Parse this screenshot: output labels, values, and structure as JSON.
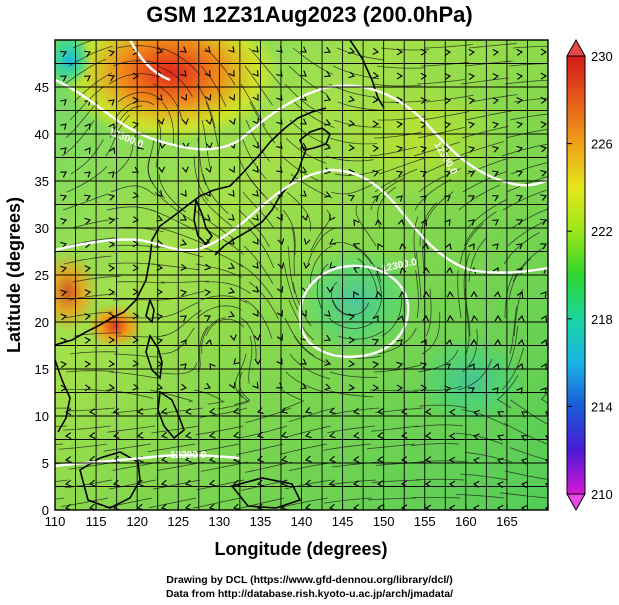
{
  "title": "GSM 12Z31Aug2023 (200.0hPa)",
  "credits": {
    "line1": "Drawing by DCL (https://www.gfd-dennou.org/library/dcl/)",
    "line2": "Data from http://database.rish.kyoto-u.ac.jp/arch/jmadata/"
  },
  "map": {
    "xlabel": "Longitude (degrees)",
    "ylabel": "Latitude  (degrees)",
    "x_ticks": [
      "110",
      "115",
      "120",
      "125",
      "130",
      "135",
      "140",
      "145",
      "150",
      "155",
      "160",
      "165"
    ],
    "y_ticks": [
      "0",
      "5",
      "10",
      "15",
      "20",
      "25",
      "30",
      "35",
      "40",
      "45"
    ],
    "contour_labels": [
      "12300.0",
      "12300.0",
      "12300.0",
      "12300.0"
    ],
    "colorbar": {
      "ticks": [
        "210",
        "214",
        "218",
        "222",
        "226",
        "230"
      ],
      "colors": [
        "#d61ad6",
        "#4b1ad6",
        "#1a5ad6",
        "#1ab4e6",
        "#1ad6a0",
        "#2ed62e",
        "#9ce61a",
        "#e6e61a",
        "#f0a01a",
        "#e65a1a",
        "#d21a1a"
      ]
    }
  }
}
